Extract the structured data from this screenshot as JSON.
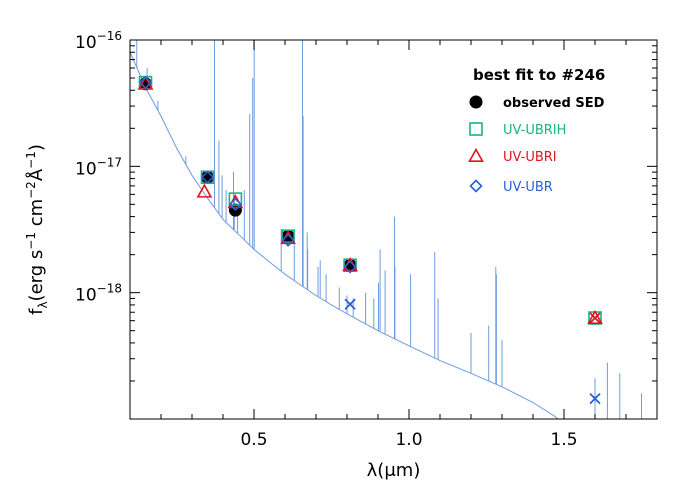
{
  "chart_data": {
    "type": "scatter",
    "title": "best fit to #246",
    "xlabel": "λ(μm)",
    "ylabel": "f_λ(erg s^-1 cm^-2 Å^-1)",
    "ylabel_parts": {
      "f": "f",
      "lambda_sub": "λ",
      "erg": "(erg s",
      "exp1": "−1",
      "cm": " cm",
      "exp2": "−2",
      "A": "Å",
      "exp3": "−1",
      "close": ")"
    },
    "xlim": [
      0.1,
      1.8
    ],
    "ylim": [
      1e-19,
      1e-16
    ],
    "yscale": "log",
    "x_ticks": [
      {
        "value": 0.5,
        "label": "0.5"
      },
      {
        "value": 1.0,
        "label": "1.0"
      },
      {
        "value": 1.5,
        "label": "1.5"
      }
    ],
    "y_ticks": [
      {
        "value": 1e-16,
        "base": "10",
        "exp": "−16"
      },
      {
        "value": 1e-17,
        "base": "10",
        "exp": "−17"
      },
      {
        "value": 1e-18,
        "base": "10",
        "exp": "−18"
      }
    ],
    "legend": {
      "title": "best fit to #246",
      "entries": [
        {
          "label": "observed SED",
          "marker": "filled-circle",
          "color": "#000000"
        },
        {
          "label": "UV-UBRIH",
          "marker": "square",
          "color": "#17b584"
        },
        {
          "label": "UV-UBRI",
          "marker": "triangle",
          "color": "#e0141e"
        },
        {
          "label": "UV-UBR",
          "marker": "diamond",
          "color": "#2a5fd8"
        }
      ]
    },
    "series": [
      {
        "name": "observed SED",
        "marker": "filled-circle",
        "color": "#000000",
        "points": [
          [
            0.15,
            4.5e-17
          ],
          [
            0.35,
            8.2e-18
          ],
          [
            0.44,
            4.5e-18
          ],
          [
            0.61,
            2.8e-18
          ],
          [
            0.81,
            1.65e-18
          ]
        ]
      },
      {
        "name": "UV-UBRIH",
        "marker": "square",
        "color": "#17b584",
        "points": [
          [
            0.15,
            4.6e-17
          ],
          [
            0.35,
            8.2e-18
          ],
          [
            0.44,
            5.5e-18
          ],
          [
            0.61,
            2.8e-18
          ],
          [
            0.81,
            1.65e-18
          ],
          [
            1.6,
            6.3e-19
          ]
        ]
      },
      {
        "name": "UV-UBRI",
        "marker": "triangle",
        "color": "#e0141e",
        "points": [
          [
            0.15,
            4.5e-17
          ],
          [
            0.34,
            6.3e-18
          ],
          [
            0.44,
            5.2e-18
          ],
          [
            0.61,
            2.7e-18
          ],
          [
            0.81,
            1.65e-18
          ],
          [
            1.6,
            6.3e-19
          ]
        ]
      },
      {
        "name": "UV-UBR",
        "marker": "diamond",
        "color": "#2a5fd8",
        "points": [
          [
            0.15,
            4.6e-17
          ],
          [
            0.35,
            8.2e-18
          ],
          [
            0.44,
            5e-18
          ],
          [
            0.61,
            2.6e-18
          ],
          [
            0.81,
            1.6e-18
          ]
        ]
      },
      {
        "name": "",
        "marker": "x",
        "color": "#2a5fd8",
        "points": [
          [
            0.81,
            8.1e-19
          ],
          [
            1.6,
            1.45e-19
          ]
        ]
      },
      {
        "name": "",
        "marker": "x",
        "color": "#e0141e",
        "points": [
          [
            1.6,
            6.3e-19
          ]
        ]
      }
    ],
    "spectrum": {
      "color": "#6f9be0",
      "continuum": [
        [
          0.1,
          8e-17
        ],
        [
          0.12,
          6.2e-17
        ],
        [
          0.15,
          4.2e-17
        ],
        [
          0.2,
          2.5e-17
        ],
        [
          0.25,
          1.4e-17
        ],
        [
          0.3,
          8.5e-18
        ],
        [
          0.35,
          5.6e-18
        ],
        [
          0.4,
          3.8e-18
        ],
        [
          0.45,
          2.9e-18
        ],
        [
          0.5,
          2.2e-18
        ],
        [
          0.55,
          1.75e-18
        ],
        [
          0.6,
          1.4e-18
        ],
        [
          0.65,
          1.15e-18
        ],
        [
          0.7,
          9.5e-19
        ],
        [
          0.75,
          8e-19
        ],
        [
          0.8,
          6.8e-19
        ],
        [
          0.9,
          5e-19
        ],
        [
          1.0,
          3.8e-19
        ],
        [
          1.1,
          2.9e-19
        ],
        [
          1.2,
          2.3e-19
        ],
        [
          1.3,
          1.8e-19
        ],
        [
          1.4,
          1.35e-19
        ],
        [
          1.47,
          1.05e-19
        ],
        [
          1.48,
          1e-19
        ]
      ],
      "emission_lines": [
        [
          0.122,
          1e-16
        ],
        [
          0.128,
          5.5e-17
        ],
        [
          0.155,
          6e-17
        ],
        [
          0.19,
          3.3e-17
        ],
        [
          0.28,
          1.2e-17
        ],
        [
          0.3727,
          1e-16
        ],
        [
          0.3869,
          1.6e-17
        ],
        [
          0.397,
          8.5e-18
        ],
        [
          0.4101,
          6.5e-18
        ],
        [
          0.434,
          9e-18
        ],
        [
          0.4363,
          6e-18
        ],
        [
          0.4471,
          4.2e-18
        ],
        [
          0.4686,
          6.5e-18
        ],
        [
          0.4861,
          2.6e-17
        ],
        [
          0.4959,
          5e-17
        ],
        [
          0.5007,
          1e-16
        ],
        [
          0.5876,
          3.2e-18
        ],
        [
          0.63,
          2.4e-18
        ],
        [
          0.6563,
          1e-16
        ],
        [
          0.6584,
          2.5e-17
        ],
        [
          0.6717,
          3e-18
        ],
        [
          0.6731,
          2.2e-18
        ],
        [
          0.7065,
          1.6e-18
        ],
        [
          0.7136,
          1.8e-18
        ],
        [
          0.7325,
          1.4e-18
        ],
        [
          0.7751,
          1.1e-18
        ],
        [
          0.8,
          9.5e-19
        ],
        [
          0.82,
          9e-19
        ],
        [
          0.86,
          1e-18
        ],
        [
          0.8863,
          9e-19
        ],
        [
          0.9015,
          1.2e-18
        ],
        [
          0.9069,
          2.2e-18
        ],
        [
          0.9229,
          1.5e-18
        ],
        [
          0.9532,
          4e-18
        ],
        [
          0.9546,
          1.6e-18
        ],
        [
          1.005,
          1.4e-18
        ],
        [
          1.083,
          2.1e-18
        ],
        [
          1.094,
          9e-19
        ],
        [
          1.2818,
          1.4e-18
        ],
        [
          1.2,
          4.8e-19
        ],
        [
          1.257,
          5.5e-19
        ],
        [
          1.28,
          1.6e-18
        ],
        [
          1.3,
          4.2e-19
        ],
        [
          1.6,
          2.1e-19
        ],
        [
          1.64,
          2.8e-19
        ],
        [
          1.68,
          2.3e-19
        ],
        [
          1.75,
          1.6e-19
        ]
      ]
    }
  }
}
